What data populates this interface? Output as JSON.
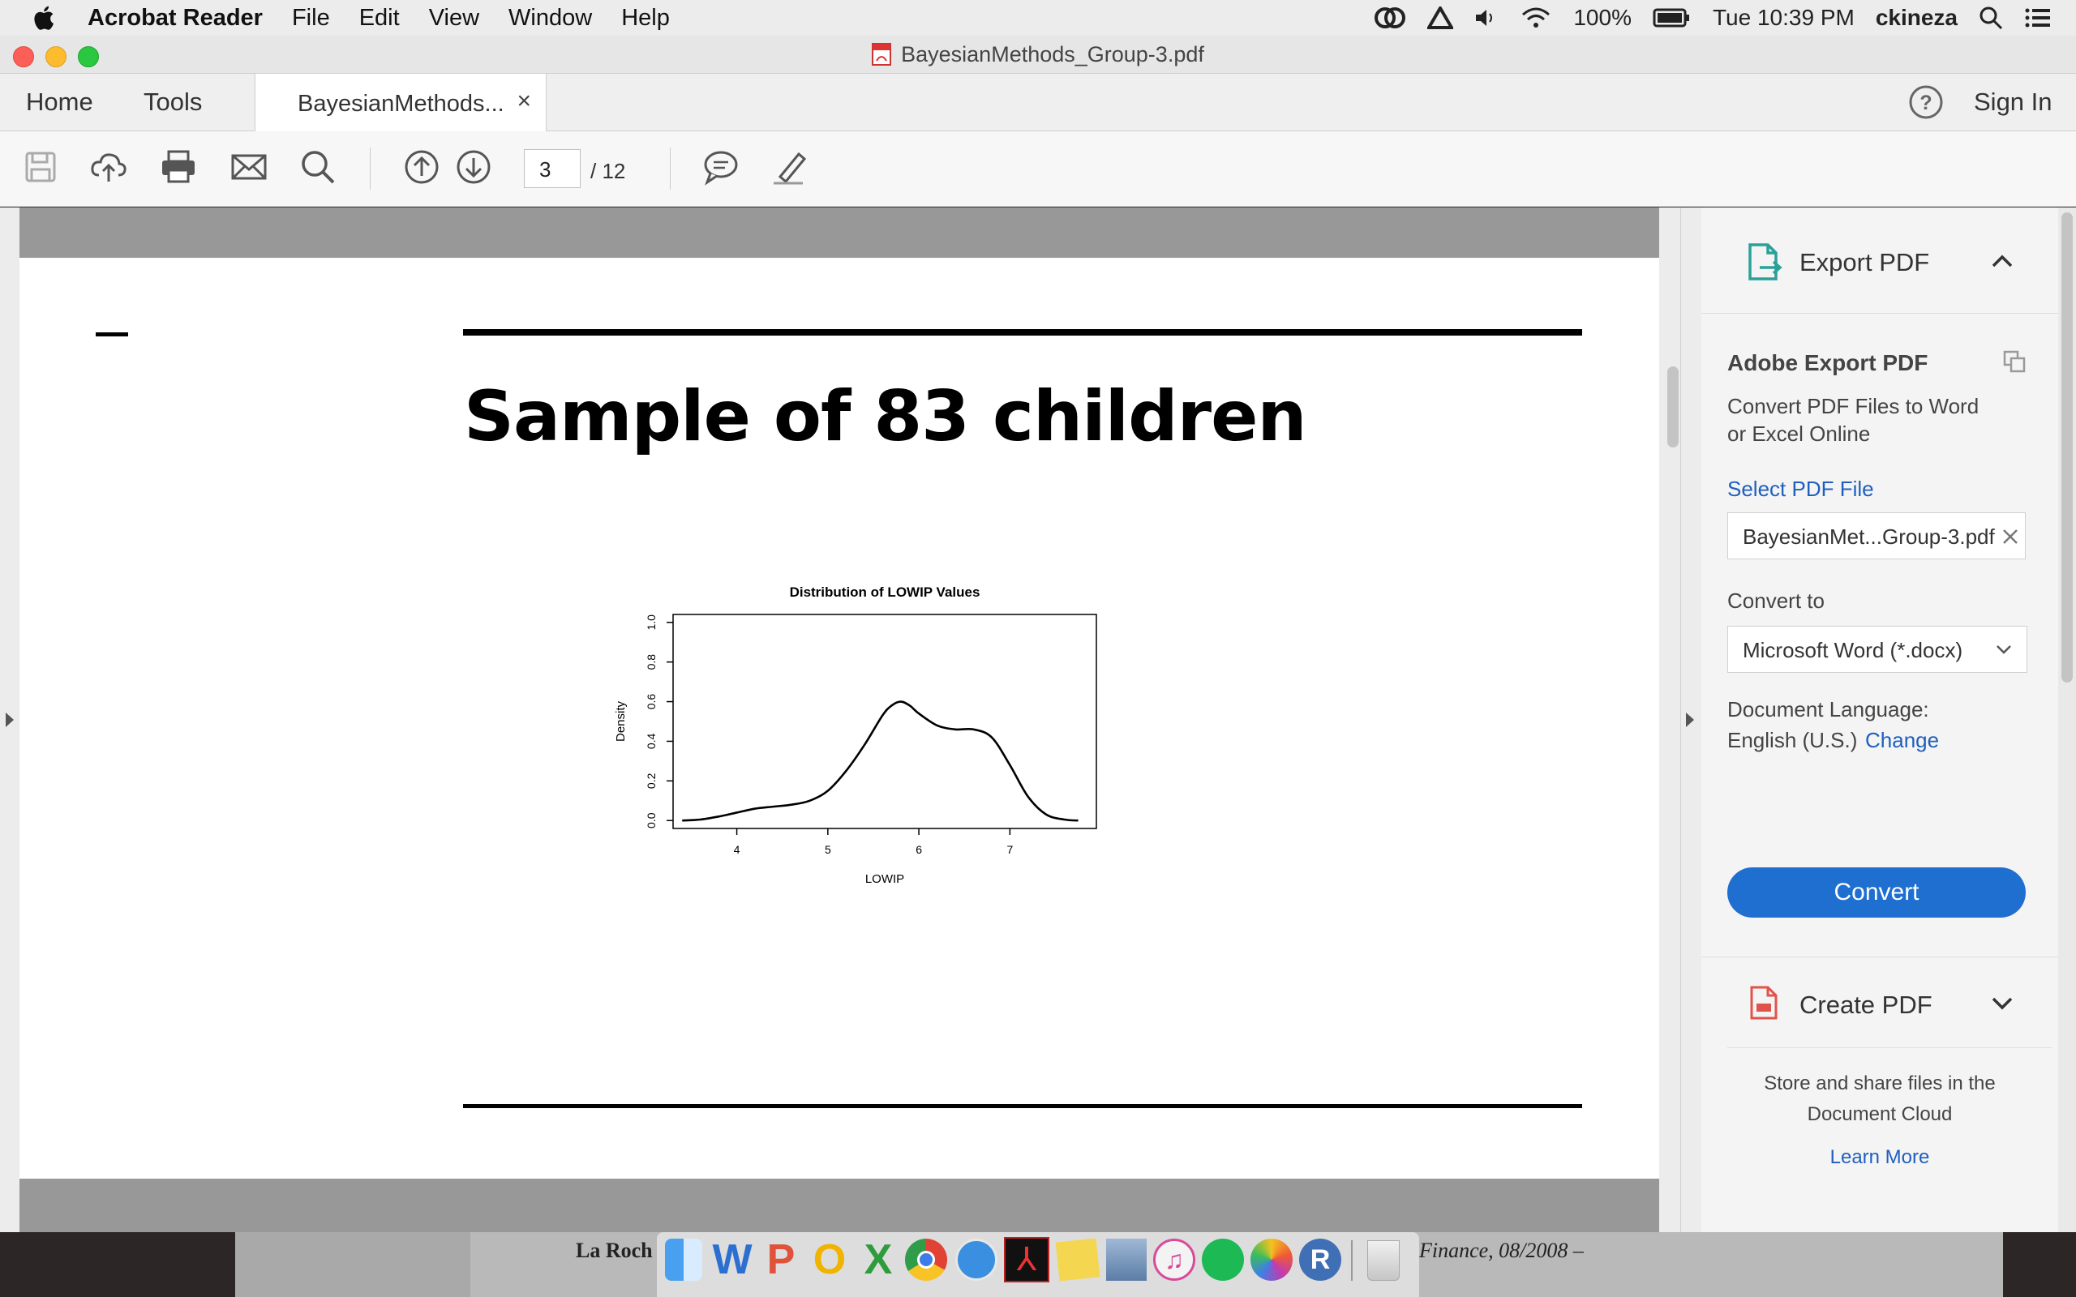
{
  "menubar": {
    "app_name": "Acrobat Reader",
    "menus": [
      "File",
      "Edit",
      "View",
      "Window",
      "Help"
    ],
    "battery": "100%",
    "clock": "Tue 10:39 PM",
    "user": "ckineza"
  },
  "window": {
    "title": "BayesianMethods_Group-3.pdf"
  },
  "tabs": {
    "home": "Home",
    "tools": "Tools",
    "doc_tab": "BayesianMethods...",
    "close": "×",
    "help": "?",
    "sign_in": "Sign In"
  },
  "toolbar": {
    "current_page": "3",
    "total_pages": "/  12",
    "icons": [
      "save-icon",
      "upload-icon",
      "print-icon",
      "email-icon",
      "search-icon",
      "page-up-icon",
      "page-down-icon",
      "comment-icon",
      "highlight-icon"
    ]
  },
  "document": {
    "heading": "Sample of 83 children"
  },
  "chart_data": {
    "type": "line",
    "title": "Distribution of LOWIP Values",
    "xlabel": "LOWIP",
    "ylabel": "Density",
    "x_ticks": [
      "4",
      "5",
      "6",
      "7"
    ],
    "y_ticks": [
      "0.0",
      "0.2",
      "0.4",
      "0.6",
      "0.8",
      "1.0"
    ],
    "xlim": [
      3.3,
      7.95
    ],
    "ylim": [
      -0.04,
      1.04
    ],
    "series": [
      {
        "x": [
          3.4,
          3.6,
          3.8,
          4.0,
          4.2,
          4.4,
          4.6,
          4.8,
          5.0,
          5.2,
          5.4,
          5.6,
          5.7,
          5.8,
          5.9,
          6.0,
          6.2,
          6.4,
          6.6,
          6.8,
          7.0,
          7.2,
          7.4,
          7.6,
          7.75
        ],
        "y": [
          0.0,
          0.005,
          0.02,
          0.04,
          0.06,
          0.07,
          0.08,
          0.1,
          0.15,
          0.25,
          0.38,
          0.53,
          0.58,
          0.6,
          0.58,
          0.54,
          0.48,
          0.46,
          0.46,
          0.42,
          0.28,
          0.12,
          0.03,
          0.005,
          0.0
        ],
        "color": "#000000"
      }
    ],
    "grid": false
  },
  "export_panel": {
    "section_title": "Export PDF",
    "heading": "Adobe Export PDF",
    "description_line1": "Convert PDF Files to Word",
    "description_line2": "or Excel Online",
    "select_link": "Select PDF File",
    "file_value": "BayesianMet...Group-3.pdf",
    "convert_to_label": "Convert to",
    "format_value": "Microsoft Word (*.docx)",
    "language_label": "Document Language:",
    "language_value": "English (U.S.)",
    "change_link": "Change",
    "convert_button": "Convert",
    "accent": "#1f6fd1"
  },
  "create_panel": {
    "section_title": "Create PDF"
  },
  "cloud_promo": {
    "line1": "Store and share files in the",
    "line2": "Document Cloud",
    "learn_more": "Learn More"
  },
  "background_window": {
    "text_left": "La Roch",
    "text_right": "Finance, 08/2008 –"
  }
}
